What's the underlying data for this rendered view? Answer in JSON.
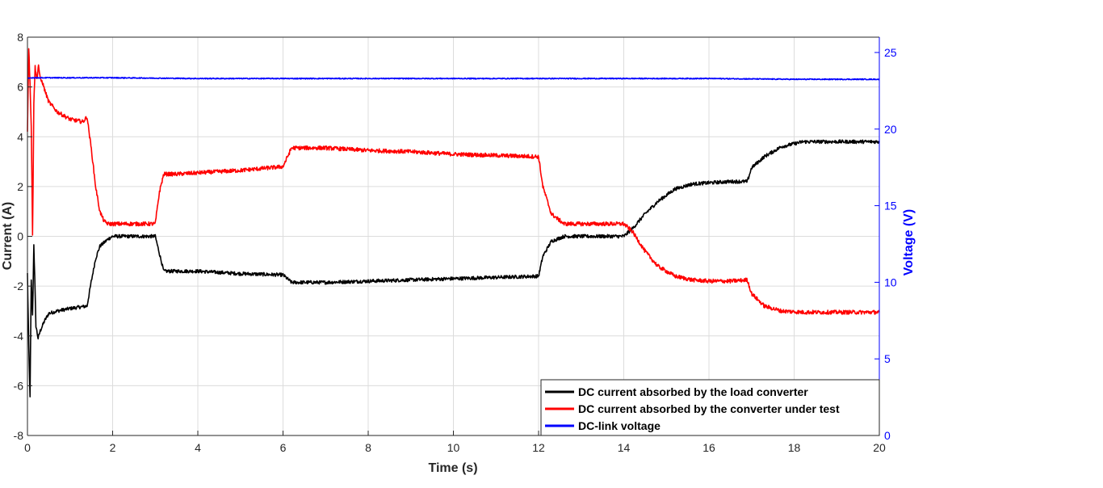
{
  "chart_data": {
    "type": "line",
    "title": "",
    "xlabel": "Time (s)",
    "ylabel": "Current (A)",
    "y2label": "Voltage (V)",
    "xlim": [
      0,
      20
    ],
    "ylim": [
      -8,
      8
    ],
    "y2lim": [
      0,
      26
    ],
    "xticks": [
      "0",
      "2",
      "4",
      "6",
      "8",
      "10",
      "12",
      "14",
      "16",
      "18",
      "20"
    ],
    "yticks": [
      "-8",
      "-6",
      "-4",
      "-2",
      "0",
      "2",
      "4",
      "6",
      "8"
    ],
    "y2ticks": [
      "0",
      "5",
      "10",
      "15",
      "20",
      "25"
    ],
    "grid": true,
    "legend_position": "bottom-right",
    "colors": {
      "load": "#000000",
      "test": "#ff0000",
      "vdc": "#0000ff",
      "axis_right": "#0000ff"
    },
    "series": [
      {
        "name": "DC current absorbed by the load converter",
        "axis": "left",
        "x": [
          0,
          0.03,
          0.06,
          0.09,
          0.12,
          0.15,
          0.2,
          0.25,
          0.3,
          0.4,
          0.5,
          0.7,
          1.0,
          1.4,
          1.5,
          1.6,
          1.7,
          1.9,
          2.0,
          2.5,
          3.0,
          3.1,
          3.2,
          3.5,
          4.0,
          5.0,
          6.0,
          6.2,
          7.0,
          8.0,
          9.0,
          10.0,
          11.0,
          12.0,
          12.1,
          12.3,
          12.6,
          13.0,
          13.5,
          14.0,
          14.2,
          14.5,
          14.8,
          15.2,
          15.6,
          16.0,
          16.5,
          16.9,
          17.0,
          17.3,
          17.7,
          18.2,
          19.0,
          20.0
        ],
        "y": [
          -1.5,
          -4.4,
          -6.4,
          -1.8,
          -3.2,
          -0.3,
          -3.6,
          -4.1,
          -3.8,
          -3.4,
          -3.1,
          -3.0,
          -2.9,
          -2.8,
          -1.8,
          -0.9,
          -0.4,
          -0.1,
          0.0,
          0.0,
          0.0,
          -0.7,
          -1.4,
          -1.4,
          -1.4,
          -1.5,
          -1.55,
          -1.85,
          -1.85,
          -1.8,
          -1.75,
          -1.7,
          -1.65,
          -1.6,
          -0.8,
          -0.2,
          0.0,
          0.0,
          0.0,
          0.0,
          0.3,
          0.9,
          1.4,
          1.9,
          2.1,
          2.15,
          2.2,
          2.2,
          2.75,
          3.2,
          3.6,
          3.8,
          3.8,
          3.8
        ]
      },
      {
        "name": "DC current absorbed by the converter under test",
        "axis": "left",
        "x": [
          0,
          0.03,
          0.06,
          0.09,
          0.12,
          0.15,
          0.18,
          0.22,
          0.26,
          0.3,
          0.35,
          0.4,
          0.5,
          0.7,
          1.0,
          1.3,
          1.4,
          1.5,
          1.6,
          1.7,
          1.8,
          1.9,
          2.0,
          2.5,
          3.0,
          3.1,
          3.2,
          3.5,
          4.0,
          5.0,
          6.0,
          6.2,
          7.0,
          8.0,
          9.0,
          10.0,
          11.0,
          12.0,
          12.1,
          12.3,
          12.6,
          13.0,
          13.5,
          14.0,
          14.2,
          14.5,
          14.8,
          15.2,
          15.6,
          16.0,
          16.5,
          16.9,
          17.0,
          17.3,
          17.7,
          18.2,
          19.0,
          20.0
        ],
        "y": [
          4.2,
          7.6,
          6.2,
          4.4,
          0.0,
          5.4,
          6.8,
          6.3,
          6.9,
          6.3,
          6.2,
          5.9,
          5.4,
          5.0,
          4.7,
          4.6,
          4.8,
          3.5,
          2.0,
          1.0,
          0.6,
          0.5,
          0.5,
          0.5,
          0.5,
          1.8,
          2.5,
          2.5,
          2.55,
          2.65,
          2.8,
          3.55,
          3.55,
          3.45,
          3.4,
          3.3,
          3.25,
          3.2,
          2.0,
          0.9,
          0.5,
          0.5,
          0.5,
          0.5,
          0.2,
          -0.6,
          -1.2,
          -1.6,
          -1.75,
          -1.8,
          -1.8,
          -1.75,
          -2.3,
          -2.8,
          -3.0,
          -3.05,
          -3.05,
          -3.05
        ]
      },
      {
        "name": "DC-link voltage",
        "axis": "right",
        "x": [
          0,
          0.1,
          0.5,
          1,
          2,
          4,
          6,
          8,
          10,
          12,
          14,
          16,
          18,
          20
        ],
        "y": [
          23.3,
          23.35,
          23.35,
          23.35,
          23.35,
          23.3,
          23.3,
          23.3,
          23.3,
          23.3,
          23.3,
          23.3,
          23.25,
          23.25
        ]
      }
    ]
  }
}
